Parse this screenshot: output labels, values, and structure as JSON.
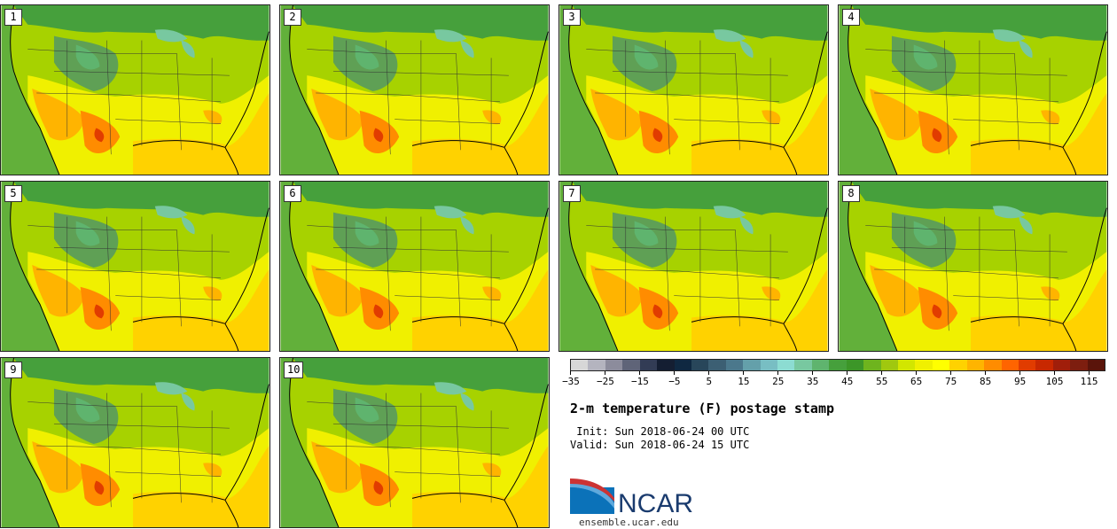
{
  "panels": [
    {
      "label": "1"
    },
    {
      "label": "2"
    },
    {
      "label": "3"
    },
    {
      "label": "4"
    },
    {
      "label": "5"
    },
    {
      "label": "6"
    },
    {
      "label": "7"
    },
    {
      "label": "8"
    },
    {
      "label": "9"
    },
    {
      "label": "10"
    }
  ],
  "colorbar": {
    "colors": [
      "#d7d7d7",
      "#b4b4bf",
      "#8c8c9c",
      "#5f6478",
      "#323c55",
      "#141e32",
      "#0f2841",
      "#28465a",
      "#3c5f73",
      "#4b788c",
      "#64a0aa",
      "#78bec3",
      "#8cdcd2",
      "#78c8a0",
      "#5fb46e",
      "#46a03c",
      "#3c9628",
      "#6eb41e",
      "#a0c80f",
      "#d2e600",
      "#f0f000",
      "#ffff00",
      "#ffd200",
      "#ffb400",
      "#ff8c00",
      "#ff6400",
      "#e13c00",
      "#c82800",
      "#a01e0a",
      "#7d1e0f",
      "#5a140a"
    ],
    "tick_labels": [
      "−35",
      "−25",
      "−15",
      "−5",
      "5",
      "15",
      "25",
      "35",
      "45",
      "55",
      "65",
      "75",
      "85",
      "95",
      "105",
      "115"
    ]
  },
  "title": "2-m temperature (F) postage stamp",
  "init_line": " Init: Sun 2018-06-24 00 UTC",
  "valid_line": "Valid: Sun 2018-06-24 15 UTC",
  "logo_text": "NCAR",
  "site": "ensemble.ucar.edu"
}
